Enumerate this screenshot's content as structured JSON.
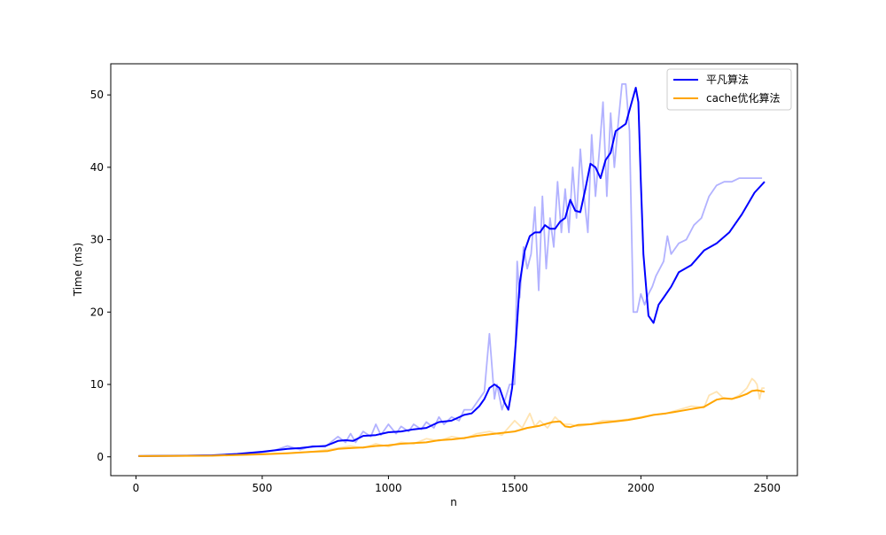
{
  "chart_data": {
    "type": "line",
    "xlabel": "n",
    "ylabel": "Time (ms)",
    "xlim": [
      -100,
      2620
    ],
    "ylim": [
      -2.6,
      54.3
    ],
    "xticks": [
      0,
      500,
      1000,
      1500,
      2000,
      2500
    ],
    "yticks": [
      0,
      10,
      20,
      30,
      40,
      50
    ],
    "grid": false,
    "legend_position": "top-right",
    "series": [
      {
        "name": "平凡算法",
        "color": "#0000ff",
        "raw_x": [
          10,
          200,
          400,
          500,
          550,
          600,
          650,
          700,
          750,
          800,
          830,
          850,
          870,
          900,
          930,
          950,
          970,
          1000,
          1030,
          1050,
          1080,
          1100,
          1130,
          1150,
          1180,
          1200,
          1220,
          1250,
          1280,
          1300,
          1330,
          1350,
          1380,
          1400,
          1420,
          1430,
          1450,
          1480,
          1500,
          1510,
          1520,
          1535,
          1550,
          1565,
          1580,
          1595,
          1610,
          1625,
          1640,
          1655,
          1670,
          1685,
          1700,
          1715,
          1730,
          1745,
          1760,
          1775,
          1790,
          1805,
          1820,
          1835,
          1850,
          1865,
          1880,
          1895,
          1910,
          1925,
          1940,
          1955,
          1970,
          1985,
          2000,
          2015,
          2030,
          2045,
          2060,
          2075,
          2090,
          2105,
          2120,
          2150,
          2180,
          2210,
          2240,
          2270,
          2300,
          2330,
          2360,
          2390,
          2420,
          2450,
          2480
        ],
        "raw_y": [
          0.1,
          0.2,
          0.3,
          0.6,
          0.9,
          1.5,
          1.0,
          1.5,
          1.4,
          2.8,
          2.0,
          3.2,
          2.0,
          3.5,
          2.8,
          4.5,
          3.0,
          4.5,
          3.2,
          4.2,
          3.5,
          4.5,
          3.8,
          4.8,
          4.0,
          5.5,
          4.5,
          5.5,
          5.0,
          6.5,
          6.5,
          7.5,
          9.0,
          17.0,
          8.0,
          10.0,
          6.5,
          10.0,
          10.0,
          27.0,
          22.0,
          29.0,
          26.0,
          28.0,
          34.5,
          23.0,
          36.0,
          26.0,
          33.0,
          29.0,
          38.0,
          31.0,
          37.0,
          31.0,
          40.0,
          33.0,
          42.5,
          36.0,
          31.0,
          44.5,
          36.0,
          42.0,
          49.0,
          36.0,
          47.5,
          40.0,
          46.0,
          51.5,
          51.5,
          45.0,
          20.0,
          20.0,
          22.5,
          21.0,
          22.5,
          23.5,
          25.0,
          26.0,
          27.0,
          30.5,
          28.0,
          29.5,
          30.0,
          32.0,
          33.0,
          36.0,
          37.5,
          38.0,
          38.0,
          38.5,
          38.5,
          38.5,
          38.5
        ],
        "x": [
          10,
          200,
          300,
          400,
          500,
          550,
          600,
          650,
          700,
          750,
          780,
          800,
          830,
          860,
          900,
          950,
          1000,
          1050,
          1100,
          1150,
          1200,
          1250,
          1300,
          1330,
          1360,
          1380,
          1400,
          1420,
          1440,
          1460,
          1475,
          1490,
          1505,
          1520,
          1540,
          1560,
          1580,
          1600,
          1620,
          1640,
          1660,
          1680,
          1700,
          1720,
          1740,
          1760,
          1780,
          1800,
          1820,
          1840,
          1860,
          1880,
          1900,
          1920,
          1940,
          1960,
          1980,
          1990,
          2000,
          2010,
          2030,
          2050,
          2070,
          2090,
          2100,
          2120,
          2150,
          2200,
          2250,
          2300,
          2350,
          2400,
          2450,
          2490
        ],
        "y": [
          0.1,
          0.15,
          0.2,
          0.4,
          0.7,
          0.9,
          1.1,
          1.2,
          1.4,
          1.5,
          1.9,
          2.2,
          2.3,
          2.2,
          2.9,
          3.0,
          3.4,
          3.5,
          3.8,
          4.0,
          4.8,
          5.0,
          5.8,
          6.0,
          7.0,
          8.0,
          9.5,
          10.0,
          9.5,
          7.5,
          6.5,
          9.5,
          16.0,
          24.0,
          28.5,
          30.5,
          31.0,
          31.0,
          32.0,
          31.5,
          31.5,
          32.5,
          33.0,
          35.5,
          34.0,
          33.8,
          37.0,
          40.5,
          40.0,
          38.5,
          41.0,
          42.0,
          45.0,
          45.5,
          46.0,
          48.5,
          51.0,
          49.0,
          38.0,
          28.0,
          19.5,
          18.5,
          21.0,
          22.0,
          22.5,
          23.5,
          25.5,
          26.5,
          28.5,
          29.5,
          31.0,
          33.5,
          36.5,
          38.0
        ]
      },
      {
        "name": "cache优化算法",
        "color": "#ffa500",
        "raw_x": [
          10,
          300,
          500,
          600,
          700,
          800,
          850,
          900,
          950,
          1000,
          1050,
          1100,
          1150,
          1200,
          1250,
          1300,
          1350,
          1400,
          1450,
          1500,
          1530,
          1560,
          1580,
          1600,
          1630,
          1660,
          1690,
          1720,
          1750,
          1800,
          1850,
          1900,
          1950,
          2000,
          2050,
          2100,
          2150,
          2200,
          2250,
          2270,
          2300,
          2330,
          2360,
          2390,
          2420,
          2440,
          2450,
          2460,
          2470,
          2480,
          2490
        ],
        "raw_y": [
          0.1,
          0.2,
          0.4,
          0.5,
          0.7,
          1.2,
          1.5,
          1.2,
          1.8,
          1.4,
          2.0,
          1.8,
          2.5,
          2.2,
          2.8,
          2.5,
          3.2,
          3.5,
          3.0,
          5.0,
          4.0,
          6.0,
          4.2,
          5.0,
          4.0,
          5.5,
          4.5,
          4.5,
          4.2,
          4.5,
          5.0,
          5.0,
          5.2,
          5.5,
          5.8,
          6.0,
          6.5,
          7.0,
          6.8,
          8.5,
          9.0,
          8.0,
          8.0,
          8.5,
          9.5,
          10.8,
          10.5,
          10.0,
          8.0,
          9.5,
          9.5
        ],
        "x": [
          10,
          300,
          500,
          600,
          700,
          760,
          800,
          850,
          900,
          950,
          1000,
          1050,
          1100,
          1150,
          1200,
          1250,
          1300,
          1350,
          1400,
          1450,
          1500,
          1550,
          1600,
          1650,
          1680,
          1700,
          1720,
          1750,
          1800,
          1850,
          1900,
          1950,
          2000,
          2050,
          2100,
          2150,
          2200,
          2250,
          2280,
          2300,
          2330,
          2360,
          2390,
          2420,
          2440,
          2460,
          2490
        ],
        "y": [
          0.1,
          0.15,
          0.35,
          0.5,
          0.7,
          0.8,
          1.1,
          1.2,
          1.3,
          1.5,
          1.6,
          1.8,
          1.9,
          2.0,
          2.3,
          2.4,
          2.6,
          2.9,
          3.1,
          3.3,
          3.5,
          4.0,
          4.3,
          4.8,
          4.9,
          4.2,
          4.1,
          4.4,
          4.5,
          4.7,
          4.9,
          5.1,
          5.4,
          5.8,
          6.0,
          6.3,
          6.6,
          6.9,
          7.5,
          7.9,
          8.1,
          8.0,
          8.3,
          8.7,
          9.1,
          9.2,
          9.0
        ]
      }
    ]
  }
}
